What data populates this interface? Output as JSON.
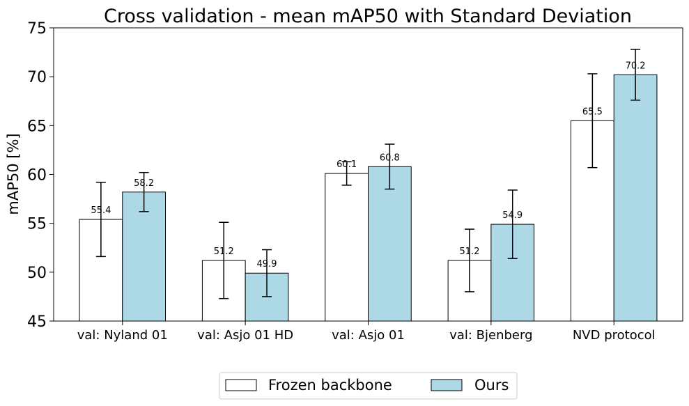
{
  "chart_data": {
    "type": "bar",
    "title": "Cross validation - mean mAP50 with Standard Deviation",
    "xlabel": "",
    "ylabel": "mAP50 [%]",
    "ylim": [
      45,
      75
    ],
    "yticks": [
      45,
      50,
      55,
      60,
      65,
      70,
      75
    ],
    "grid": false,
    "categories": [
      "val: Nyland 01",
      "val: Asjo 01 HD",
      "val: Asjo 01",
      "val: Bjenberg",
      "NVD protocol"
    ],
    "series": [
      {
        "name": "Frozen backbone",
        "color": "#ffffff",
        "values": [
          55.4,
          51.2,
          60.1,
          51.2,
          65.5
        ],
        "labels": [
          "55.4",
          "51.2",
          "60.1",
          "51.2",
          "65.5"
        ],
        "std": [
          3.8,
          3.9,
          1.2,
          3.2,
          4.8
        ]
      },
      {
        "name": "Ours",
        "color": "#add8e6",
        "values": [
          58.2,
          49.9,
          60.8,
          54.9,
          70.2
        ],
        "labels": [
          "58.2",
          "49.9",
          "60.8",
          "54.9",
          "70.2"
        ],
        "std": [
          2.0,
          2.4,
          2.3,
          3.5,
          2.6
        ]
      }
    ],
    "legend": {
      "position": "bottom-center",
      "columns": 2
    }
  }
}
